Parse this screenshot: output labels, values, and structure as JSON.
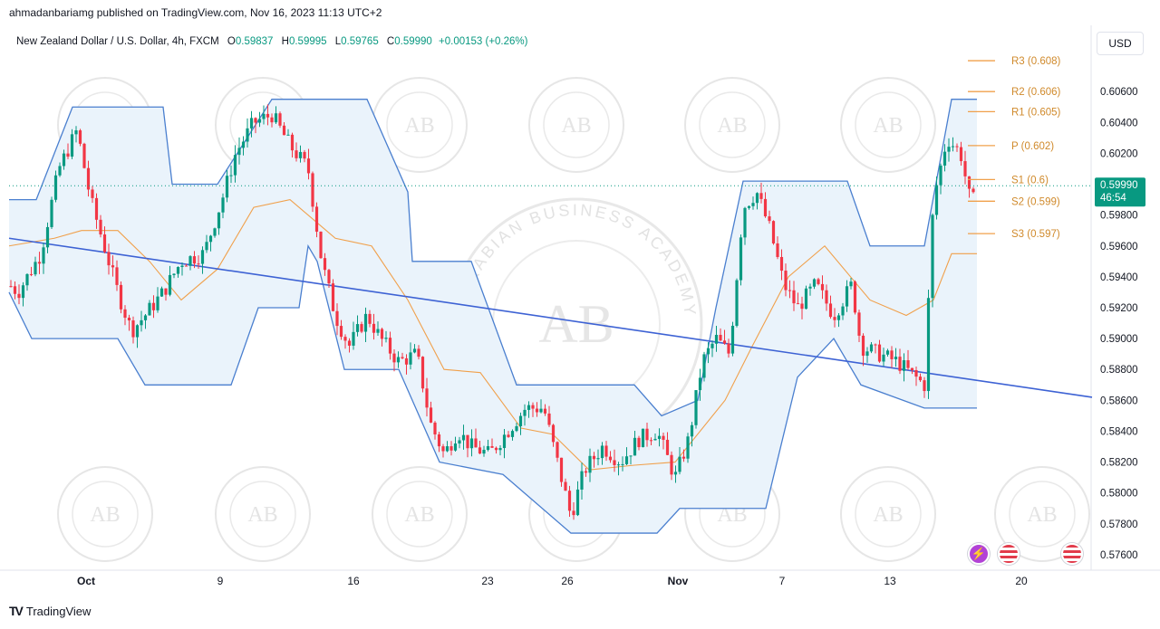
{
  "header": {
    "publish_line": "ahmadanbariamg published on TradingView.com, Nov 16, 2023 11:13 UTC+2"
  },
  "legend": {
    "symbol": "New Zealand Dollar / U.S. Dollar, 4h, FXCM",
    "open_key": "O",
    "open": "0.59837",
    "high_key": "H",
    "high": "0.59995",
    "low_key": "L",
    "low": "0.59765",
    "close_key": "C",
    "close": "0.59990",
    "change": "+0.00153 (+0.26%)"
  },
  "currency": "USD",
  "price_badge": {
    "price": "0.59990",
    "countdown": "46:54"
  },
  "footer": {
    "brand": "TradingView"
  },
  "watermark": {
    "initials": "AB",
    "text": "ARABIAN BUSINESS ACADEMY"
  },
  "colors": {
    "up": "#089981",
    "down": "#f23645",
    "channel": "#4a7fcf",
    "channel_fill": "#eaf3fb",
    "midline": "#f0a04b",
    "trendline": "#3d62d4",
    "pivot": "#f0a04b",
    "badge": "#089981"
  },
  "chart_data": {
    "type": "candlestick",
    "symbol": "NZDUSD",
    "timeframe": "4h",
    "y_ticks": [
      0.576,
      0.578,
      0.58,
      0.582,
      0.584,
      0.586,
      0.588,
      0.59,
      0.592,
      0.594,
      0.596,
      0.598,
      0.6,
      0.602,
      0.604,
      0.606
    ],
    "y_tick_labels": [
      "0.57600",
      "0.57800",
      "0.58000",
      "0.58200",
      "0.58400",
      "0.58600",
      "0.58800",
      "0.59000",
      "0.59200",
      "0.59400",
      "0.59600",
      "0.59800",
      "0.60200",
      "0.60400",
      "0.60600"
    ],
    "x_tick_labels": [
      "Oct",
      "9",
      "16",
      "23",
      "26",
      "Nov",
      "7",
      "13",
      "20"
    ],
    "ylim": [
      0.575,
      0.609
    ],
    "last_price": 0.5999,
    "pivot_levels": [
      {
        "label": "R3 (0.608)",
        "value": 0.608
      },
      {
        "label": "R2 (0.606)",
        "value": 0.606
      },
      {
        "label": "R1 (0.605)",
        "value": 0.6047
      },
      {
        "label": "P (0.602)",
        "value": 0.6025
      },
      {
        "label": "S1 (0.6)",
        "value": 0.6003
      },
      {
        "label": "S2 (0.599)",
        "value": 0.5989
      },
      {
        "label": "S3 (0.597)",
        "value": 0.5968
      }
    ],
    "close_path": [
      {
        "x": 0,
        "y": 0.594
      },
      {
        "x": 20,
        "y": 0.593
      },
      {
        "x": 45,
        "y": 0.5955
      },
      {
        "x": 65,
        "y": 0.601
      },
      {
        "x": 85,
        "y": 0.6035
      },
      {
        "x": 100,
        "y": 0.599
      },
      {
        "x": 115,
        "y": 0.596
      },
      {
        "x": 130,
        "y": 0.593
      },
      {
        "x": 145,
        "y": 0.5905
      },
      {
        "x": 160,
        "y": 0.5915
      },
      {
        "x": 180,
        "y": 0.593
      },
      {
        "x": 200,
        "y": 0.595
      },
      {
        "x": 225,
        "y": 0.5955
      },
      {
        "x": 245,
        "y": 0.599
      },
      {
        "x": 260,
        "y": 0.602
      },
      {
        "x": 280,
        "y": 0.604
      },
      {
        "x": 300,
        "y": 0.6045
      },
      {
        "x": 320,
        "y": 0.6025
      },
      {
        "x": 340,
        "y": 0.601
      },
      {
        "x": 355,
        "y": 0.595
      },
      {
        "x": 370,
        "y": 0.5915
      },
      {
        "x": 385,
        "y": 0.5895
      },
      {
        "x": 405,
        "y": 0.5915
      },
      {
        "x": 420,
        "y": 0.59
      },
      {
        "x": 440,
        "y": 0.5885
      },
      {
        "x": 460,
        "y": 0.589
      },
      {
        "x": 475,
        "y": 0.5845
      },
      {
        "x": 490,
        "y": 0.5825
      },
      {
        "x": 505,
        "y": 0.584
      },
      {
        "x": 520,
        "y": 0.583
      },
      {
        "x": 540,
        "y": 0.5825
      },
      {
        "x": 560,
        "y": 0.584
      },
      {
        "x": 580,
        "y": 0.5855
      },
      {
        "x": 600,
        "y": 0.5855
      },
      {
        "x": 615,
        "y": 0.582
      },
      {
        "x": 630,
        "y": 0.5785
      },
      {
        "x": 645,
        "y": 0.5815
      },
      {
        "x": 665,
        "y": 0.583
      },
      {
        "x": 685,
        "y": 0.582
      },
      {
        "x": 705,
        "y": 0.5835
      },
      {
        "x": 725,
        "y": 0.584
      },
      {
        "x": 745,
        "y": 0.581
      },
      {
        "x": 760,
        "y": 0.5835
      },
      {
        "x": 775,
        "y": 0.5885
      },
      {
        "x": 790,
        "y": 0.59
      },
      {
        "x": 805,
        "y": 0.589
      },
      {
        "x": 820,
        "y": 0.5985
      },
      {
        "x": 835,
        "y": 0.5995
      },
      {
        "x": 850,
        "y": 0.597
      },
      {
        "x": 865,
        "y": 0.5935
      },
      {
        "x": 880,
        "y": 0.592
      },
      {
        "x": 900,
        "y": 0.5935
      },
      {
        "x": 920,
        "y": 0.5915
      },
      {
        "x": 940,
        "y": 0.5935
      },
      {
        "x": 950,
        "y": 0.5895
      },
      {
        "x": 970,
        "y": 0.589
      },
      {
        "x": 990,
        "y": 0.5885
      },
      {
        "x": 1010,
        "y": 0.5875
      },
      {
        "x": 1020,
        "y": 0.587
      },
      {
        "x": 1030,
        "y": 0.599
      },
      {
        "x": 1045,
        "y": 0.603
      },
      {
        "x": 1060,
        "y": 0.602
      },
      {
        "x": 1072,
        "y": 0.5985
      },
      {
        "x": 1078,
        "y": 0.5999
      }
    ],
    "channel_upper": [
      {
        "x": 10,
        "y": 0.599
      },
      {
        "x": 40,
        "y": 0.599
      },
      {
        "x": 80,
        "y": 0.605
      },
      {
        "x": 180,
        "y": 0.605
      },
      {
        "x": 190,
        "y": 0.6
      },
      {
        "x": 240,
        "y": 0.6
      },
      {
        "x": 300,
        "y": 0.6055
      },
      {
        "x": 405,
        "y": 0.6055
      },
      {
        "x": 450,
        "y": 0.5995
      },
      {
        "x": 455,
        "y": 0.595
      },
      {
        "x": 520,
        "y": 0.595
      },
      {
        "x": 570,
        "y": 0.587
      },
      {
        "x": 700,
        "y": 0.587
      },
      {
        "x": 730,
        "y": 0.585
      },
      {
        "x": 770,
        "y": 0.586
      },
      {
        "x": 790,
        "y": 0.592
      },
      {
        "x": 820,
        "y": 0.6002
      },
      {
        "x": 935,
        "y": 0.6002
      },
      {
        "x": 960,
        "y": 0.596
      },
      {
        "x": 1020,
        "y": 0.596
      },
      {
        "x": 1050,
        "y": 0.6055
      },
      {
        "x": 1078,
        "y": 0.6055
      }
    ],
    "channel_lower": [
      {
        "x": 10,
        "y": 0.593
      },
      {
        "x": 35,
        "y": 0.59
      },
      {
        "x": 130,
        "y": 0.59
      },
      {
        "x": 160,
        "y": 0.587
      },
      {
        "x": 255,
        "y": 0.587
      },
      {
        "x": 285,
        "y": 0.592
      },
      {
        "x": 330,
        "y": 0.592
      },
      {
        "x": 340,
        "y": 0.596
      },
      {
        "x": 350,
        "y": 0.595
      },
      {
        "x": 380,
        "y": 0.588
      },
      {
        "x": 440,
        "y": 0.588
      },
      {
        "x": 485,
        "y": 0.582
      },
      {
        "x": 555,
        "y": 0.5812
      },
      {
        "x": 630,
        "y": 0.5774
      },
      {
        "x": 725,
        "y": 0.5774
      },
      {
        "x": 750,
        "y": 0.579
      },
      {
        "x": 845,
        "y": 0.579
      },
      {
        "x": 880,
        "y": 0.5875
      },
      {
        "x": 920,
        "y": 0.59
      },
      {
        "x": 950,
        "y": 0.587
      },
      {
        "x": 1020,
        "y": 0.5855
      },
      {
        "x": 1078,
        "y": 0.5855
      }
    ],
    "channel_mid": [
      {
        "x": 10,
        "y": 0.596
      },
      {
        "x": 60,
        "y": 0.5965
      },
      {
        "x": 90,
        "y": 0.597
      },
      {
        "x": 130,
        "y": 0.597
      },
      {
        "x": 165,
        "y": 0.595
      },
      {
        "x": 200,
        "y": 0.5925
      },
      {
        "x": 240,
        "y": 0.5945
      },
      {
        "x": 280,
        "y": 0.5985
      },
      {
        "x": 320,
        "y": 0.599
      },
      {
        "x": 370,
        "y": 0.5965
      },
      {
        "x": 410,
        "y": 0.596
      },
      {
        "x": 450,
        "y": 0.5925
      },
      {
        "x": 490,
        "y": 0.588
      },
      {
        "x": 530,
        "y": 0.5878
      },
      {
        "x": 575,
        "y": 0.5842
      },
      {
        "x": 610,
        "y": 0.5838
      },
      {
        "x": 650,
        "y": 0.5815
      },
      {
        "x": 700,
        "y": 0.5818
      },
      {
        "x": 745,
        "y": 0.582
      },
      {
        "x": 800,
        "y": 0.586
      },
      {
        "x": 830,
        "y": 0.5895
      },
      {
        "x": 870,
        "y": 0.594
      },
      {
        "x": 910,
        "y": 0.596
      },
      {
        "x": 960,
        "y": 0.5925
      },
      {
        "x": 1000,
        "y": 0.5915
      },
      {
        "x": 1030,
        "y": 0.5925
      },
      {
        "x": 1050,
        "y": 0.5955
      },
      {
        "x": 1078,
        "y": 0.5955
      }
    ],
    "trendline": {
      "x1": 10,
      "y1": 0.5965,
      "x2": 1205,
      "y2": 0.5862
    }
  }
}
